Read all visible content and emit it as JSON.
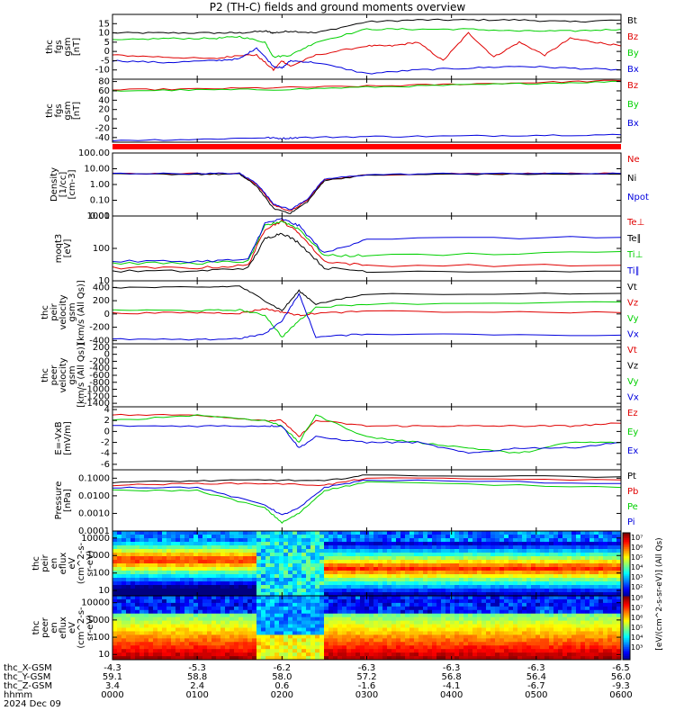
{
  "title": "P2 (TH-C) fields and ground moments overview",
  "colors": {
    "black": "#000000",
    "red": "#e00000",
    "green": "#00d000",
    "blue": "#0000dd"
  },
  "chart_data": [
    {
      "type": "line",
      "name": "fgs_gsm",
      "ylabel": [
        "thc",
        "fgs",
        "gsm",
        "[nT]"
      ],
      "ylim": [
        -15,
        20
      ],
      "yticks": [
        "15",
        "10",
        "5",
        "0",
        "-5",
        "-10"
      ],
      "ytick_values": [
        15,
        10,
        5,
        0,
        -5,
        -10
      ],
      "legend": [
        "Bt",
        "Bz",
        "By",
        "Bx"
      ],
      "series": [
        {
          "name": "Bt",
          "color": "black",
          "x": [
            0,
            60,
            120,
            150,
            180,
            190,
            210,
            240,
            300,
            360,
            420,
            480,
            540,
            600
          ],
          "values": [
            10,
            10,
            10,
            10,
            11,
            10,
            11,
            10,
            16,
            17,
            17,
            17,
            16,
            17
          ]
        },
        {
          "name": "Bz",
          "color": "red",
          "x": [
            0,
            60,
            120,
            150,
            170,
            190,
            200,
            210,
            240,
            300,
            330,
            360,
            390,
            420,
            450,
            480,
            510,
            540,
            570,
            600
          ],
          "values": [
            -2,
            -3,
            -4,
            -2,
            -2,
            -10,
            -5,
            -8,
            -2,
            3,
            3,
            5,
            -5,
            10,
            -3,
            5,
            -2,
            7,
            5,
            3
          ]
        },
        {
          "name": "By",
          "color": "green",
          "x": [
            0,
            60,
            120,
            150,
            180,
            190,
            210,
            240,
            300,
            360,
            420,
            480,
            540,
            600
          ],
          "values": [
            6,
            7,
            7,
            8,
            5,
            -3,
            -2,
            5,
            12,
            12,
            12,
            11,
            11,
            12
          ]
        },
        {
          "name": "Bx",
          "color": "blue",
          "x": [
            0,
            60,
            120,
            150,
            170,
            190,
            200,
            210,
            240,
            300,
            360,
            420,
            480,
            540,
            600
          ],
          "values": [
            -5,
            -6,
            -5,
            -4,
            2,
            -8,
            -9,
            -5,
            -6,
            -12,
            -10,
            -9,
            -8,
            -9,
            -10
          ]
        }
      ]
    },
    {
      "type": "line",
      "name": "fgs_gsm_scaled",
      "ylabel": [
        "thc",
        "fgs",
        "gsm",
        "[nT]"
      ],
      "ylim": [
        -50,
        85
      ],
      "yticks": [
        "80",
        "60",
        "40",
        "20",
        "0",
        "-20",
        "-40"
      ],
      "ytick_values": [
        80,
        60,
        40,
        20,
        0,
        -20,
        -40
      ],
      "legend": [
        "Bz",
        "By",
        "Bx"
      ],
      "series": [
        {
          "name": "Bz",
          "color": "red",
          "x": [
            0,
            100,
            200,
            300,
            400,
            500,
            600
          ],
          "values": [
            62,
            64,
            67,
            70,
            74,
            78,
            82
          ]
        },
        {
          "name": "By",
          "color": "green",
          "x": [
            0,
            100,
            200,
            300,
            400,
            500,
            600
          ],
          "values": [
            60,
            62,
            63,
            68,
            72,
            76,
            80
          ]
        },
        {
          "name": "Bx",
          "color": "blue",
          "x": [
            0,
            100,
            180,
            200,
            220,
            300,
            400,
            500,
            600
          ],
          "values": [
            -46,
            -44,
            -40,
            -42,
            -40,
            -38,
            -37,
            -35,
            -34
          ]
        }
      ]
    },
    {
      "type": "line",
      "name": "density",
      "ylabel": [
        "Density",
        "[1/cc]",
        "[cm-3]"
      ],
      "scale": "log",
      "ylim": [
        0.01,
        100
      ],
      "yticks": [
        "100.00",
        "10.00",
        "1.00",
        "0.10",
        "0.01"
      ],
      "ytick_values": [
        100,
        10,
        1,
        0.1,
        0.01
      ],
      "legend": [
        "Ne",
        "Ni",
        "Npot"
      ],
      "series": [
        {
          "name": "Ne",
          "color": "red",
          "x": [
            0,
            100,
            150,
            170,
            190,
            210,
            230,
            250,
            300,
            400,
            500,
            600
          ],
          "values": [
            5,
            5,
            5,
            1,
            0.05,
            0.02,
            0.1,
            2,
            4,
            5,
            5,
            5
          ]
        },
        {
          "name": "Ni",
          "color": "black",
          "x": [
            0,
            100,
            150,
            170,
            190,
            210,
            230,
            250,
            300,
            400,
            500,
            600
          ],
          "values": [
            4.5,
            4.5,
            4.5,
            0.8,
            0.03,
            0.015,
            0.08,
            1.8,
            4,
            4.5,
            4.5,
            4.5
          ]
        },
        {
          "name": "Npot",
          "color": "blue",
          "x": [
            0,
            100,
            150,
            170,
            190,
            210,
            230,
            250,
            300,
            400,
            500,
            600
          ],
          "values": [
            5,
            5,
            5,
            1.2,
            0.06,
            0.025,
            0.12,
            2.2,
            4.2,
            5,
            5,
            5
          ]
        }
      ]
    },
    {
      "type": "line",
      "name": "temperature",
      "ylabel": [
        "moqt3",
        "[eV]"
      ],
      "scale": "log",
      "ylim": [
        10,
        1000
      ],
      "yticks": [
        "1000",
        "100",
        "10"
      ],
      "ytick_values": [
        1000,
        100,
        10
      ],
      "legend": [
        "Te⊥",
        "Te∥",
        "Ti⊥",
        "Ti∥"
      ],
      "series": [
        {
          "name": "Te⊥",
          "color": "red",
          "x": [
            0,
            100,
            160,
            180,
            200,
            220,
            250,
            300,
            600
          ],
          "values": [
            25,
            25,
            30,
            400,
            700,
            300,
            40,
            30,
            30
          ]
        },
        {
          "name": "Te∥",
          "color": "black",
          "x": [
            0,
            100,
            160,
            180,
            200,
            220,
            250,
            300,
            600
          ],
          "values": [
            20,
            20,
            25,
            200,
            300,
            150,
            25,
            20,
            20
          ]
        },
        {
          "name": "Ti⊥",
          "color": "green",
          "x": [
            0,
            100,
            160,
            180,
            200,
            220,
            250,
            300,
            600
          ],
          "values": [
            35,
            35,
            40,
            500,
            700,
            400,
            60,
            60,
            80
          ]
        },
        {
          "name": "Ti∥",
          "color": "blue",
          "x": [
            0,
            100,
            160,
            180,
            200,
            220,
            250,
            300,
            600
          ],
          "values": [
            40,
            40,
            45,
            600,
            800,
            500,
            70,
            200,
            220
          ]
        }
      ]
    },
    {
      "type": "line",
      "name": "pei_velocity",
      "ylabel": [
        "thc",
        "peir",
        "velocity",
        "gsm",
        "[km/s (All Qs)]"
      ],
      "ylim": [
        -450,
        500
      ],
      "yticks": [
        "400",
        "200",
        "0",
        "-200",
        "-400"
      ],
      "ytick_values": [
        400,
        200,
        0,
        -200,
        -400
      ],
      "legend": [
        "Vt",
        "Vz",
        "Vy",
        "Vx"
      ],
      "series": [
        {
          "name": "Vt",
          "color": "black",
          "x": [
            0,
            100,
            150,
            180,
            200,
            220,
            240,
            300,
            600
          ],
          "values": [
            400,
            400,
            420,
            200,
            50,
            350,
            150,
            300,
            310
          ]
        },
        {
          "name": "Vz",
          "color": "red",
          "x": [
            0,
            100,
            150,
            180,
            200,
            220,
            240,
            300,
            600
          ],
          "values": [
            10,
            20,
            10,
            80,
            30,
            -20,
            10,
            40,
            20
          ]
        },
        {
          "name": "Vy",
          "color": "green",
          "x": [
            0,
            100,
            150,
            180,
            200,
            220,
            240,
            300,
            600
          ],
          "values": [
            60,
            50,
            60,
            -20,
            -350,
            -100,
            100,
            150,
            180
          ]
        },
        {
          "name": "Vx",
          "color": "blue",
          "x": [
            0,
            100,
            150,
            180,
            200,
            220,
            240,
            300,
            600
          ],
          "values": [
            -380,
            -390,
            -370,
            -300,
            -100,
            300,
            -350,
            -300,
            -320
          ]
        }
      ]
    },
    {
      "type": "line",
      "name": "pee_velocity",
      "ylabel": [
        "thc",
        "peer",
        "velocity",
        "gsm",
        "[km/s (All Qs)]"
      ],
      "ylim": [
        -1500,
        300
      ],
      "yticks": [
        "200",
        "0",
        "-200",
        "-400",
        "-600",
        "-800",
        "-1000",
        "-1200",
        "-1400"
      ],
      "ytick_values": [
        200,
        0,
        -200,
        -400,
        -600,
        -800,
        -1000,
        -1200,
        -1400
      ],
      "legend": [
        "Vt",
        "Vz",
        "Vy",
        "Vx"
      ],
      "series": []
    },
    {
      "type": "line",
      "name": "efield",
      "ylabel": [
        "E=-VxB",
        "[mV/m]"
      ],
      "ylim": [
        -7,
        4.5
      ],
      "yticks": [
        "4",
        "2",
        "0",
        "-2",
        "-4",
        "-6"
      ],
      "ytick_values": [
        4,
        2,
        0,
        -2,
        -4,
        -6
      ],
      "legend": [
        "Ez",
        "Ey",
        "Ex"
      ],
      "series": [
        {
          "name": "Ez",
          "color": "red",
          "x": [
            0,
            100,
            180,
            200,
            220,
            240,
            300,
            360,
            420,
            480,
            540,
            600
          ],
          "values": [
            3,
            3,
            2,
            2,
            -1,
            2,
            1,
            1,
            1,
            1,
            1,
            1.5
          ]
        },
        {
          "name": "Ey",
          "color": "green",
          "x": [
            0,
            100,
            180,
            200,
            220,
            240,
            300,
            360,
            420,
            480,
            540,
            600
          ],
          "values": [
            2,
            3,
            2,
            1,
            -2,
            3,
            -1,
            -2,
            -3,
            -4,
            -2,
            -2
          ]
        },
        {
          "name": "Ex",
          "color": "blue",
          "x": [
            0,
            100,
            180,
            200,
            220,
            240,
            300,
            360,
            420,
            480,
            540,
            600
          ],
          "values": [
            1,
            1,
            1,
            1,
            -3,
            -1,
            -2,
            -2,
            -4,
            -3,
            -3,
            -2
          ]
        }
      ]
    },
    {
      "type": "line",
      "name": "pressure",
      "ylabel": [
        "Pressure",
        "[nPa]"
      ],
      "scale": "log",
      "ylim": [
        0.0001,
        0.3
      ],
      "yticks": [
        "0.1000",
        "0.0100",
        "0.0010",
        "0.0001"
      ],
      "ytick_values": [
        0.1,
        0.01,
        0.001,
        0.0001
      ],
      "legend": [
        "Pt",
        "Pb",
        "Pe",
        "Pi"
      ],
      "series": [
        {
          "name": "Pt",
          "color": "black",
          "x": [
            0,
            100,
            180,
            250,
            300,
            600
          ],
          "values": [
            0.06,
            0.07,
            0.08,
            0.07,
            0.15,
            0.12
          ]
        },
        {
          "name": "Pb",
          "color": "red",
          "x": [
            0,
            100,
            180,
            250,
            300,
            600
          ],
          "values": [
            0.04,
            0.05,
            0.05,
            0.04,
            0.1,
            0.08
          ]
        },
        {
          "name": "Pe",
          "color": "green",
          "x": [
            0,
            100,
            180,
            200,
            220,
            250,
            300,
            600
          ],
          "values": [
            0.02,
            0.02,
            0.002,
            0.0003,
            0.001,
            0.02,
            0.06,
            0.03
          ]
        },
        {
          "name": "Pi",
          "color": "blue",
          "x": [
            0,
            100,
            180,
            200,
            220,
            250,
            300,
            600
          ],
          "values": [
            0.03,
            0.03,
            0.003,
            0.0008,
            0.002,
            0.03,
            0.08,
            0.05
          ]
        }
      ]
    },
    {
      "type": "heatmap",
      "name": "peir_en_eflux",
      "ylabel": [
        "thc",
        "peir",
        "en",
        "eflux",
        "eV",
        "(cm^2-s-",
        "sr-eV)"
      ],
      "scale": "log",
      "yticks": [
        "10000",
        "1000",
        "100",
        "10"
      ],
      "ytick_values": [
        10000,
        1000,
        100,
        10
      ]
    },
    {
      "type": "heatmap",
      "name": "peer_en_eflux",
      "ylabel": [
        "thc",
        "peer",
        "en",
        "eflux",
        "eV",
        "(cm^2-s-",
        "sr-eV)"
      ],
      "scale": "log",
      "yticks": [
        "10000",
        "1000",
        "100",
        "10"
      ],
      "ytick_values": [
        10000,
        1000,
        100,
        10
      ]
    }
  ],
  "colorbar": {
    "label": "[eV/(cm^2-s-sr-eV)] (All Qs)",
    "upper": [
      "10⁷",
      "10⁶",
      "10⁵",
      "10⁴",
      "10³",
      "10²"
    ],
    "lower": [
      "10⁸",
      "10⁷",
      "10⁶",
      "10⁵",
      "10⁴",
      "10³"
    ]
  },
  "x_axis": {
    "x": [
      0,
      100,
      200,
      300,
      400,
      500,
      600
    ],
    "rows": [
      {
        "label": "thc_X-GSM",
        "values": [
          "-4.3",
          "-5.3",
          "-6.2",
          "-6.3",
          "-6.3",
          "-6.3",
          "-6.5"
        ]
      },
      {
        "label": "thc_Y-GSM",
        "values": [
          "59.1",
          "58.8",
          "58.0",
          "57.2",
          "56.8",
          "56.4",
          "56.0"
        ]
      },
      {
        "label": "thc_Z-GSM",
        "values": [
          "3.4",
          "2.4",
          "0.6",
          "-1.6",
          "-4.1",
          "-6.7",
          "-9.3"
        ]
      },
      {
        "label": "hhmm",
        "values": [
          "0000",
          "0100",
          "0200",
          "0300",
          "0400",
          "0500",
          "0600"
        ]
      }
    ],
    "date": "2024 Dec 09"
  }
}
